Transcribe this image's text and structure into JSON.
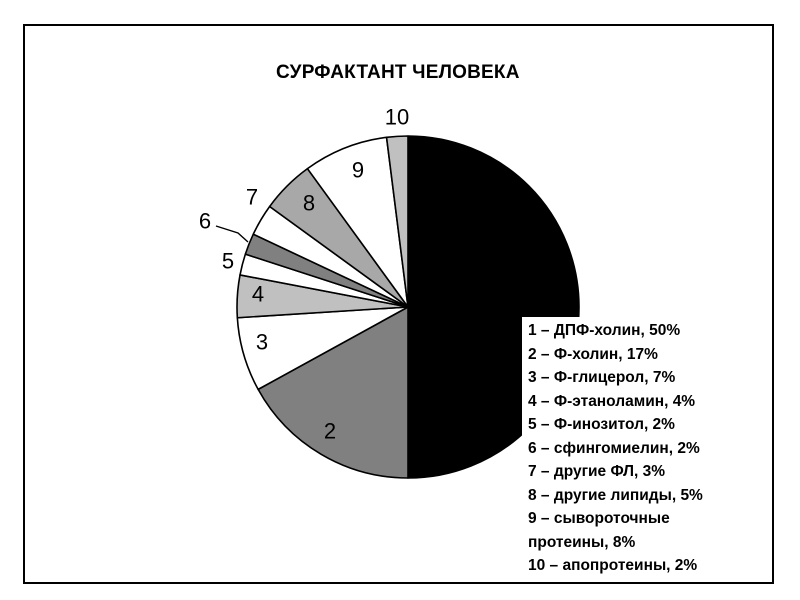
{
  "chart_data": {
    "type": "pie",
    "title": "СУРФАКТАНТ ЧЕЛОВЕКА",
    "start": "12 o'clock",
    "direction": "clockwise",
    "slices": [
      {
        "label": "1",
        "value": 50,
        "color": "#000000"
      },
      {
        "label": "2",
        "value": 17,
        "color": "#808080"
      },
      {
        "label": "3",
        "value": 7,
        "color": "#ffffff"
      },
      {
        "label": "4",
        "value": 4,
        "color": "#c0c0c0"
      },
      {
        "label": "5",
        "value": 2,
        "color": "#ffffff"
      },
      {
        "label": "6",
        "value": 2,
        "color": "#808080"
      },
      {
        "label": "7",
        "value": 3,
        "color": "#ffffff"
      },
      {
        "label": "8",
        "value": 5,
        "color": "#a8a8a8"
      },
      {
        "label": "9",
        "value": 8,
        "color": "#ffffff"
      },
      {
        "label": "10",
        "value": 2,
        "color": "#c0c0c0"
      }
    ],
    "legend": [
      "1 – ДПФ-холин, 50%",
      "2 – Ф-холин, 17%",
      "3 – Ф-глицерол, 7%",
      "4 – Ф-этаноламин, 4%",
      "5 – Ф-инозитол, 2%",
      "6 – сфингомиелин, 2%",
      "7 – другие ФЛ, 3%",
      "8 – другие липиды, 5%",
      "9 – сывороточные протеины, 8%",
      "10 – апопротеины, 2%"
    ]
  }
}
